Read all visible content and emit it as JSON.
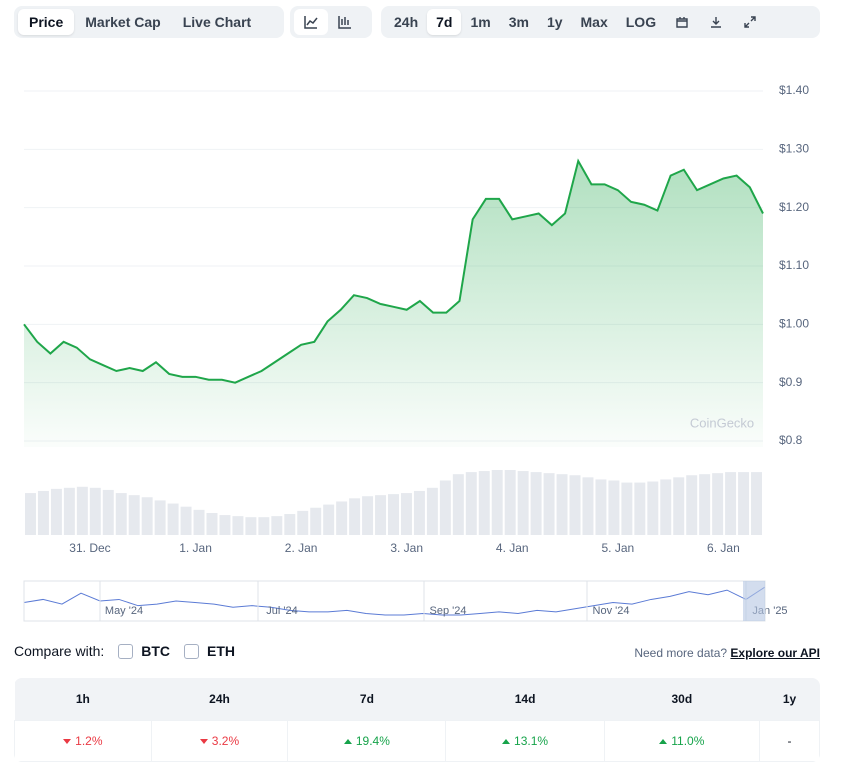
{
  "toolbar": {
    "tabs": [
      "Price",
      "Market Cap",
      "Live Chart"
    ],
    "active_tab": 0,
    "ranges": [
      "24h",
      "7d",
      "1m",
      "3m",
      "1y",
      "Max",
      "LOG"
    ],
    "active_range": 1
  },
  "chart_data": {
    "type": "line",
    "color": "#1fa64a",
    "watermark": "CoinGecko",
    "categories": [
      null,
      null,
      null,
      null,
      null,
      "31. Dec",
      null,
      null,
      null,
      null,
      null,
      null,
      null,
      "1. Jan",
      null,
      null,
      null,
      null,
      null,
      null,
      null,
      "2. Jan",
      null,
      null,
      null,
      null,
      null,
      null,
      null,
      "3. Jan",
      null,
      null,
      null,
      null,
      null,
      null,
      null,
      "4. Jan",
      null,
      null,
      null,
      null,
      null,
      null,
      null,
      "5. Jan",
      null,
      null,
      null,
      null,
      null,
      null,
      null,
      "6. Jan",
      null,
      null,
      null
    ],
    "values": [
      1.0,
      0.97,
      0.95,
      0.97,
      0.96,
      0.94,
      0.93,
      0.92,
      0.925,
      0.92,
      0.935,
      0.915,
      0.91,
      0.91,
      0.905,
      0.905,
      0.9,
      0.91,
      0.92,
      0.935,
      0.95,
      0.965,
      0.97,
      1.005,
      1.025,
      1.05,
      1.045,
      1.035,
      1.03,
      1.025,
      1.04,
      1.02,
      1.02,
      1.04,
      1.18,
      1.215,
      1.215,
      1.18,
      1.185,
      1.19,
      1.17,
      1.19,
      1.28,
      1.24,
      1.24,
      1.23,
      1.21,
      1.205,
      1.195,
      1.255,
      1.265,
      1.23,
      1.24,
      1.25,
      1.255,
      1.235,
      1.19
    ],
    "volume": [
      40,
      42,
      44,
      45,
      46,
      45,
      43,
      40,
      38,
      36,
      33,
      30,
      27,
      24,
      21,
      19,
      18,
      17,
      17,
      18,
      20,
      23,
      26,
      29,
      32,
      35,
      37,
      38,
      39,
      40,
      42,
      45,
      52,
      58,
      60,
      61,
      62,
      62,
      61,
      60,
      59,
      58,
      57,
      55,
      53,
      52,
      50,
      50,
      51,
      53,
      55,
      57,
      58,
      59,
      60,
      60,
      60
    ],
    "ylim": [
      0.8,
      1.4
    ],
    "yticks": [
      {
        "value": 0.8,
        "label": "$0.8"
      },
      {
        "value": 0.9,
        "label": "$0.9"
      },
      {
        "value": 1.0,
        "label": "$1.00"
      },
      {
        "value": 1.1,
        "label": "$1.10"
      },
      {
        "value": 1.2,
        "label": "$1.20"
      },
      {
        "value": 1.3,
        "label": "$1.30"
      },
      {
        "value": 1.4,
        "label": "$1.40"
      }
    ],
    "grid": true,
    "navigator": {
      "ticks": [
        "May '24",
        "Jul '24",
        "Sep '24",
        "Nov '24",
        "Jan '25"
      ],
      "values": [
        0.98,
        1.0,
        0.97,
        1.04,
        0.99,
        1.0,
        0.96,
        0.97,
        0.99,
        0.98,
        0.97,
        0.95,
        0.96,
        0.95,
        0.93,
        0.92,
        0.92,
        0.93,
        0.91,
        0.9,
        0.9,
        0.91,
        0.9,
        0.9,
        0.91,
        0.92,
        0.91,
        0.93,
        0.92,
        0.94,
        0.96,
        0.98,
        0.97,
        1.0,
        1.02,
        1.05,
        1.03,
        1.06,
        1.0,
        1.08
      ]
    }
  },
  "compare": {
    "label": "Compare with:",
    "options": [
      "BTC",
      "ETH"
    ],
    "note": "Need more data?",
    "link": "Explore our API"
  },
  "table": {
    "headers": [
      "1h",
      "24h",
      "7d",
      "14d",
      "30d",
      "1y"
    ],
    "cells": [
      {
        "text": "1.2%",
        "trend": "down"
      },
      {
        "text": "3.2%",
        "trend": "down"
      },
      {
        "text": "19.4%",
        "trend": "up"
      },
      {
        "text": "13.1%",
        "trend": "up"
      },
      {
        "text": "11.0%",
        "trend": "up"
      },
      {
        "text": "-",
        "trend": null
      }
    ]
  }
}
